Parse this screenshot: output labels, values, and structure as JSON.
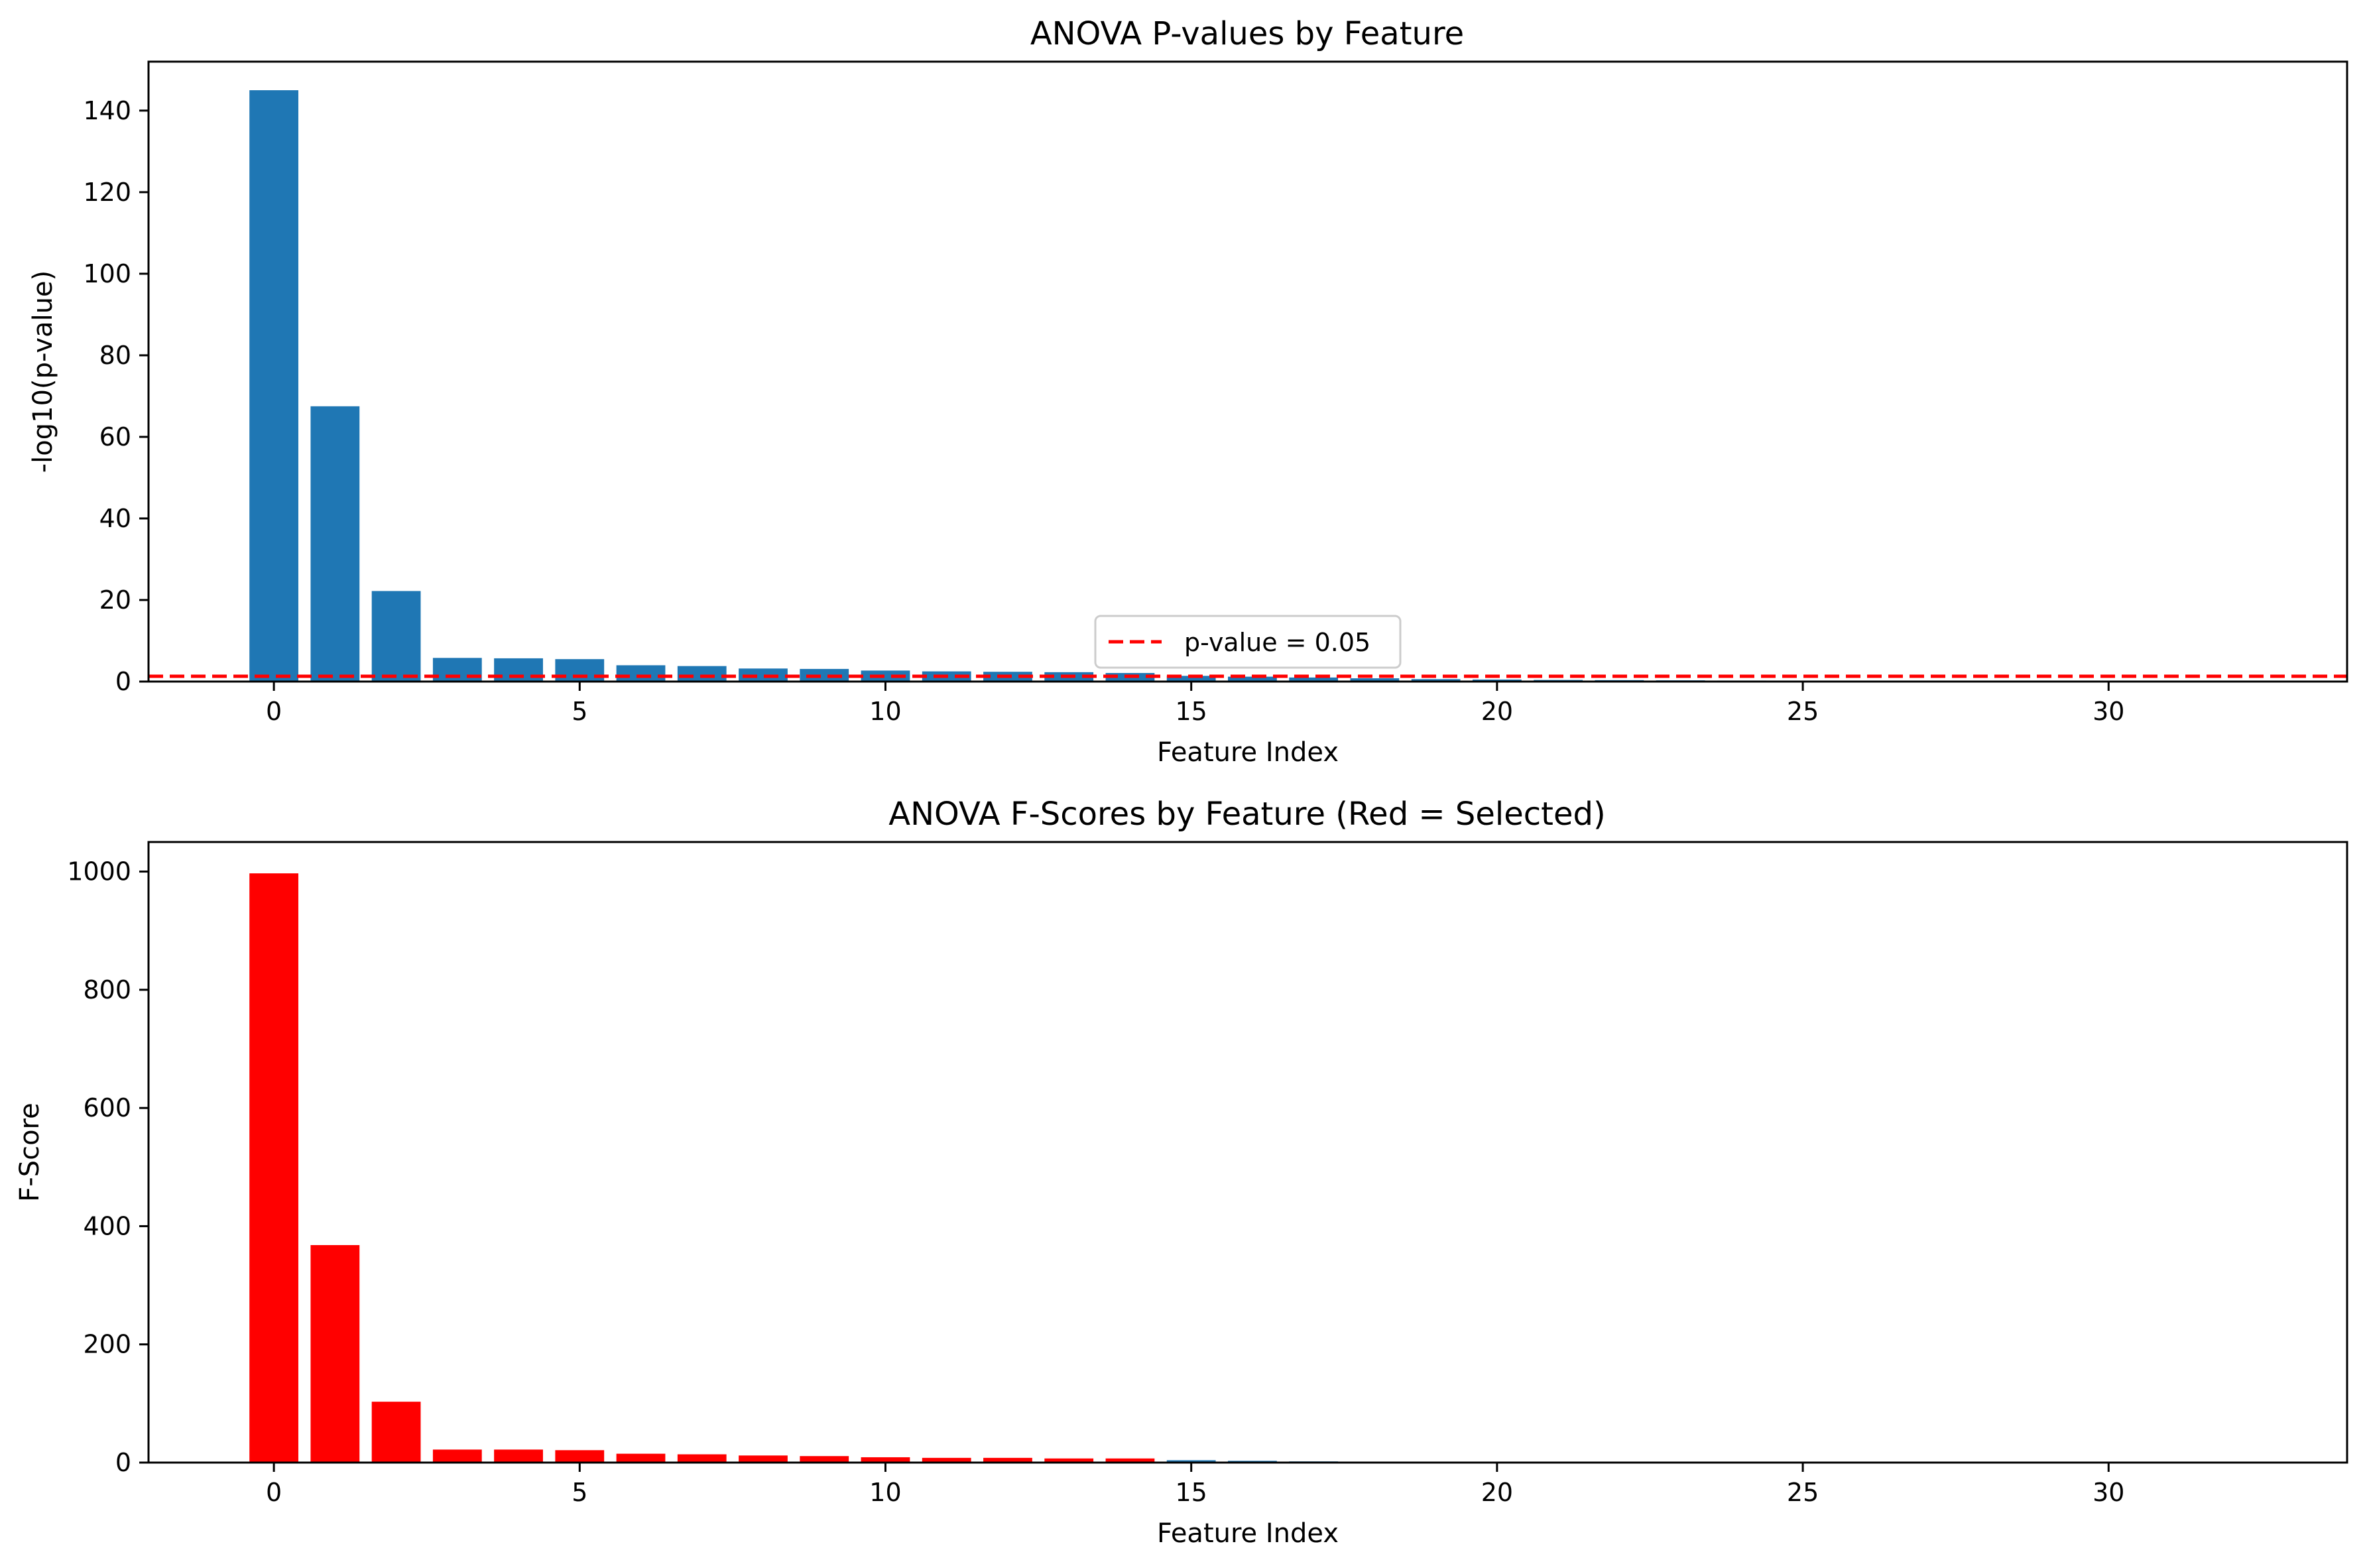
{
  "chart_data": [
    {
      "type": "bar",
      "title": "ANOVA P-values by Feature",
      "xlabel": "Feature Index",
      "ylabel": "-log10(p-value)",
      "xlim": [
        -2.05,
        33.9
      ],
      "ylim": [
        0,
        152
      ],
      "xticks": [
        0,
        5,
        10,
        15,
        20,
        25,
        30
      ],
      "yticks": [
        0,
        20,
        40,
        60,
        80,
        100,
        120,
        140
      ],
      "bar_color": "#1f77b4",
      "x": [
        0,
        1,
        2,
        3,
        4,
        5,
        6,
        7,
        8,
        9,
        10,
        11,
        12,
        13,
        14,
        15,
        16,
        17,
        18,
        19,
        20,
        21,
        22,
        23,
        24,
        25,
        26,
        27,
        28,
        29,
        30,
        31,
        32
      ],
      "values": [
        145,
        67.5,
        22.2,
        5.8,
        5.7,
        5.5,
        4.0,
        3.8,
        3.2,
        3.1,
        2.7,
        2.5,
        2.4,
        2.3,
        2.1,
        1.4,
        1.2,
        1.0,
        0.8,
        0.6,
        0.5,
        0.4,
        0.35,
        0.3,
        0.25,
        0.2,
        0.15,
        0.12,
        0.1,
        0.08,
        0.06,
        0.05,
        0.04
      ],
      "reference_line": {
        "y": 1.301,
        "label": "p-value = 0.05",
        "color": "#ff0000",
        "style": "dashed"
      },
      "legend": {
        "placement": "lower center",
        "entries": [
          "p-value = 0.05"
        ]
      },
      "grid": false
    },
    {
      "type": "bar",
      "title": "ANOVA F-Scores by Feature (Red = Selected)",
      "xlabel": "Feature Index",
      "ylabel": "F-Score",
      "xlim": [
        -2.05,
        33.9
      ],
      "ylim": [
        0,
        1050
      ],
      "xticks": [
        0,
        5,
        10,
        15,
        20,
        25,
        30
      ],
      "yticks": [
        0,
        200,
        400,
        600,
        800,
        1000
      ],
      "selected_color": "#ff0000",
      "unselected_color": "#1f77b4",
      "x": [
        0,
        1,
        2,
        3,
        4,
        5,
        6,
        7,
        8,
        9,
        10,
        11,
        12,
        13,
        14,
        15,
        16,
        17,
        18,
        19,
        20,
        21,
        22,
        23,
        24,
        25,
        26,
        27,
        28,
        29,
        30,
        31,
        32
      ],
      "values": [
        997,
        368,
        103,
        22,
        22,
        21,
        15,
        14,
        12,
        11,
        9,
        8,
        8,
        7,
        7,
        4,
        3,
        2,
        1.5,
        1.2,
        1,
        0.8,
        0.7,
        0.6,
        0.5,
        0.4,
        0.3,
        0.25,
        0.2,
        0.15,
        0.1,
        0.08,
        0.05
      ],
      "selected": [
        true,
        true,
        true,
        true,
        true,
        true,
        true,
        true,
        true,
        true,
        true,
        true,
        true,
        true,
        true,
        false,
        false,
        false,
        false,
        false,
        false,
        false,
        false,
        false,
        false,
        false,
        false,
        false,
        false,
        false,
        false,
        false,
        false
      ],
      "grid": false
    }
  ]
}
